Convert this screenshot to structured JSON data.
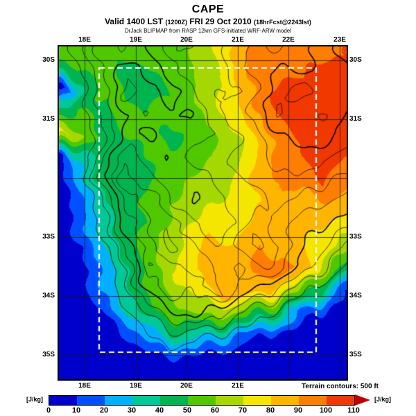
{
  "header": {
    "title": "CAPE",
    "valid_prefix": "Valid 1400 LST",
    "valid_z": "(1200Z)",
    "valid_date": "FRI 29 Oct 2010",
    "valid_fcst": "(18hrFcst@2243lst)",
    "credit": "DrJack BLIPMAP from RASP 12km GFS-initiated WRF-ARW model"
  },
  "map": {
    "lon_labels_top": [
      "18E",
      "19E",
      "20E",
      "21E",
      "22E",
      "23E"
    ],
    "lon_labels_bottom": [
      "18E",
      "19E",
      "20E",
      "21E"
    ],
    "lat_labels": [
      "30S",
      "31S",
      "33S",
      "34S",
      "35S"
    ],
    "terrain_note": "Terrain contours: 500 ft"
  },
  "colorbar": {
    "units": "[J/kg]",
    "ticks": [
      "0",
      "10",
      "20",
      "30",
      "40",
      "50",
      "60",
      "70",
      "80",
      "90",
      "100",
      "110"
    ],
    "colors": [
      "#0000cd",
      "#0050ff",
      "#00b0ff",
      "#00c896",
      "#00b450",
      "#50c800",
      "#a5d700",
      "#f5e600",
      "#ffb400",
      "#ff7d00",
      "#f03800"
    ],
    "arrow_color": "#c00000"
  },
  "chart_data": {
    "type": "heatmap",
    "title": "CAPE",
    "units": "J/kg",
    "domain": {
      "lon_min": "17.5E",
      "lon_max": "23.1E",
      "lat_min": "29.8S",
      "lat_max": "35.4S"
    },
    "colorbar_range": [
      0,
      110
    ],
    "colorbar_step": 10,
    "cape_grid": {
      "values": [
        [
          60,
          55,
          50,
          55,
          60,
          55,
          60,
          70,
          80,
          95,
          100,
          90,
          95,
          100
        ],
        [
          45,
          50,
          55,
          45,
          50,
          55,
          60,
          65,
          85,
          100,
          95,
          100,
          105,
          100
        ],
        [
          5,
          40,
          55,
          50,
          45,
          50,
          60,
          70,
          80,
          95,
          105,
          100,
          110,
          105
        ],
        [
          40,
          55,
          45,
          55,
          50,
          55,
          55,
          65,
          75,
          90,
          100,
          110,
          105,
          100
        ],
        [
          75,
          60,
          45,
          50,
          55,
          45,
          55,
          60,
          70,
          85,
          95,
          105,
          110,
          105
        ],
        [
          5,
          30,
          45,
          40,
          50,
          55,
          50,
          60,
          65,
          80,
          95,
          100,
          105,
          100
        ],
        [
          2,
          25,
          45,
          50,
          45,
          55,
          60,
          65,
          70,
          85,
          90,
          95,
          100,
          95
        ],
        [
          2,
          20,
          40,
          45,
          55,
          60,
          65,
          70,
          75,
          80,
          90,
          85,
          90,
          85
        ],
        [
          2,
          15,
          35,
          45,
          50,
          60,
          70,
          75,
          70,
          85,
          80,
          85,
          80,
          75
        ],
        [
          2,
          10,
          30,
          45,
          55,
          65,
          75,
          85,
          80,
          90,
          85,
          80,
          75,
          65
        ],
        [
          2,
          8,
          25,
          40,
          55,
          70,
          80,
          90,
          85,
          95,
          95,
          85,
          60,
          40
        ],
        [
          2,
          5,
          20,
          35,
          50,
          60,
          70,
          80,
          90,
          85,
          75,
          60,
          40,
          10
        ],
        [
          2,
          2,
          10,
          30,
          45,
          55,
          60,
          65,
          60,
          50,
          40,
          15,
          5,
          2
        ],
        [
          2,
          2,
          2,
          10,
          25,
          40,
          35,
          30,
          20,
          10,
          5,
          2,
          2,
          2
        ],
        [
          2,
          2,
          2,
          2,
          5,
          8,
          10,
          5,
          2,
          2,
          2,
          2,
          2,
          2
        ],
        [
          2,
          2,
          2,
          2,
          2,
          2,
          2,
          2,
          2,
          2,
          2,
          2,
          2,
          2
        ]
      ]
    },
    "terrain_contours": {
      "interval_ft": 500,
      "elevation_grid_ft": [
        [
          100,
          800,
          1800,
          1400,
          2000,
          2600,
          2400,
          2800,
          3200,
          3600,
          3400,
          3800,
          4200,
          3800
        ],
        [
          0,
          500,
          1600,
          2400,
          1700,
          2300,
          2900,
          2500,
          3400,
          3800,
          4200,
          3600,
          4400,
          4000
        ],
        [
          0,
          300,
          1400,
          2800,
          2100,
          1700,
          2500,
          3100,
          2900,
          3500,
          4400,
          4800,
          4000,
          4200
        ],
        [
          0,
          200,
          1100,
          1900,
          2600,
          2100,
          1900,
          2700,
          3300,
          3700,
          4600,
          4200,
          4600,
          4000
        ],
        [
          0,
          100,
          900,
          2400,
          1700,
          2500,
          2300,
          2500,
          2900,
          3500,
          3900,
          4400,
          4200,
          3800
        ],
        [
          0,
          100,
          1300,
          3000,
          2300,
          1900,
          2700,
          2900,
          3100,
          3300,
          3700,
          3900,
          3500,
          3300
        ],
        [
          0,
          0,
          1700,
          3400,
          2700,
          2300,
          2100,
          2500,
          2900,
          3100,
          3300,
          3500,
          3100,
          2900
        ],
        [
          0,
          0,
          1100,
          2700,
          3300,
          2500,
          1900,
          2300,
          2700,
          2900,
          3100,
          2700,
          2500,
          2300
        ],
        [
          0,
          0,
          700,
          2100,
          2900,
          3500,
          2700,
          2100,
          2500,
          3300,
          2700,
          2300,
          2100,
          1700
        ],
        [
          0,
          0,
          300,
          1500,
          2700,
          3700,
          3100,
          2500,
          3100,
          3700,
          2900,
          2100,
          1500,
          900
        ],
        [
          0,
          0,
          100,
          1100,
          3100,
          2500,
          3500,
          2900,
          2300,
          3100,
          2500,
          1700,
          900,
          300
        ],
        [
          0,
          0,
          0,
          700,
          1900,
          2900,
          2300,
          3300,
          2700,
          1900,
          1300,
          700,
          200,
          0
        ],
        [
          0,
          0,
          0,
          300,
          1100,
          1700,
          2500,
          1700,
          1100,
          700,
          300,
          0,
          0,
          0
        ],
        [
          0,
          0,
          0,
          0,
          500,
          900,
          700,
          500,
          300,
          100,
          0,
          0,
          0,
          0
        ],
        [
          0,
          0,
          0,
          0,
          0,
          200,
          100,
          0,
          0,
          0,
          0,
          0,
          0,
          0
        ],
        [
          0,
          0,
          0,
          0,
          0,
          0,
          0,
          0,
          0,
          0,
          0,
          0,
          0,
          0
        ]
      ]
    }
  }
}
